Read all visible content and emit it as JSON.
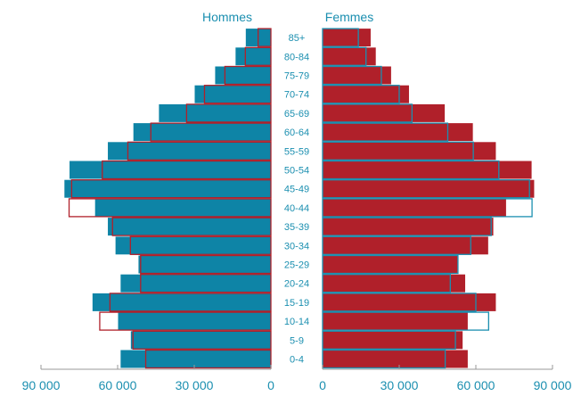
{
  "chart_data": {
    "type": "bar",
    "subtype": "population-pyramid",
    "title": "",
    "series_labels": {
      "left": "Hommes",
      "right": "Femmes"
    },
    "age_groups": [
      "0-4",
      "5-9",
      "10-14",
      "15-19",
      "20-24",
      "25-29",
      "30-34",
      "35-39",
      "40-44",
      "45-49",
      "50-54",
      "55-59",
      "60-64",
      "65-69",
      "70-74",
      "75-79",
      "80-84",
      "85+"
    ],
    "hommes": [
      59000,
      55000,
      60000,
      70000,
      59000,
      52000,
      61000,
      64000,
      69000,
      81000,
      79000,
      64000,
      54000,
      44000,
      30000,
      22000,
      14000,
      10000
    ],
    "hommes_outline": [
      49000,
      54000,
      67000,
      63000,
      51000,
      51000,
      55000,
      62000,
      79000,
      78000,
      66000,
      56000,
      47000,
      33000,
      26000,
      18000,
      10000,
      5000
    ],
    "femmes": [
      57000,
      55000,
      57000,
      68000,
      56000,
      53000,
      65000,
      67000,
      72000,
      83000,
      82000,
      68000,
      59000,
      48000,
      34000,
      27000,
      21000,
      19000
    ],
    "femmes_outline": [
      48000,
      52000,
      65000,
      60000,
      50000,
      53000,
      58000,
      66000,
      82000,
      81000,
      69000,
      59000,
      49000,
      35000,
      30000,
      23000,
      17000,
      14000
    ],
    "xaxis_left": {
      "range": [
        0,
        90000
      ],
      "ticks": [
        90000,
        60000,
        30000,
        0
      ],
      "tick_labels": [
        "90 000",
        "60 000",
        "30 000",
        "0"
      ]
    },
    "xaxis_right": {
      "range": [
        0,
        90000
      ],
      "ticks": [
        0,
        30000,
        60000,
        90000
      ],
      "tick_labels": [
        "0",
        "30 000",
        "60 000",
        "90 000"
      ]
    },
    "colors": {
      "hommes_fill": "#0e84a6",
      "femmes_fill": "#b0202a",
      "hommes_outline": "#b0202a",
      "femmes_outline": "#1b8fb0",
      "bar_border": "#ffffff",
      "label_color": "#1b8fb0",
      "axis_color": "#999999"
    }
  }
}
